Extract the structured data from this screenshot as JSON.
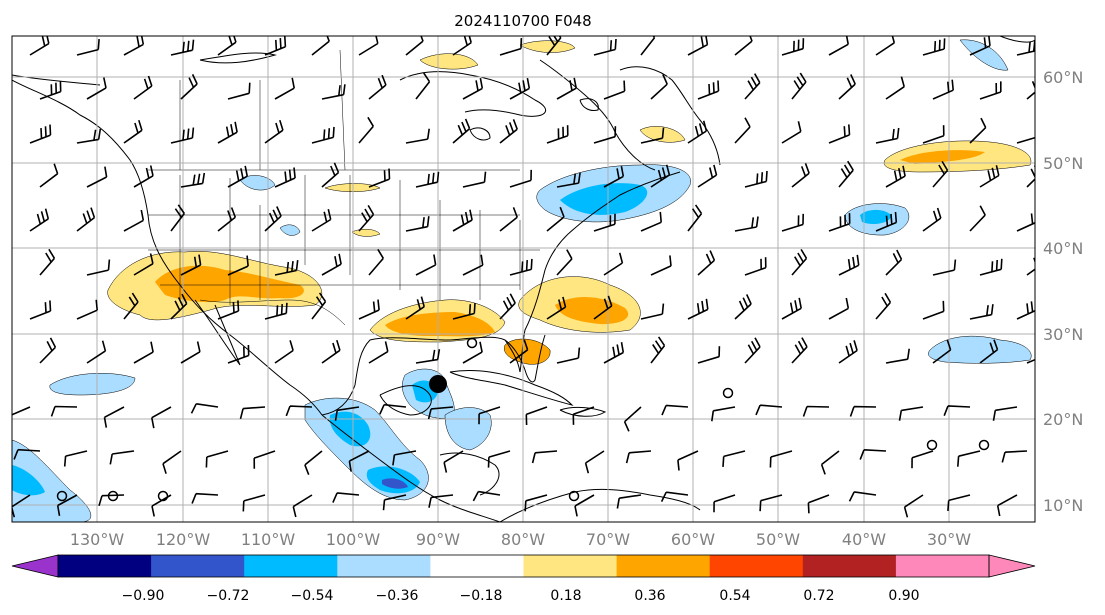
{
  "title": "2024110700 F048",
  "lon_labels": [
    "130°W",
    "120°W",
    "110°W",
    "100°W",
    "90°W",
    "80°W",
    "70°W",
    "60°W",
    "50°W",
    "40°W",
    "30°W"
  ],
  "lat_labels": [
    "60°N",
    "50°N",
    "40°N",
    "30°N",
    "20°N",
    "10°N"
  ],
  "colorbar": {
    "tick_labels": [
      "−0.90",
      "−0.72",
      "−0.54",
      "−0.36",
      "−0.18",
      "0.18",
      "0.36",
      "0.54",
      "0.72",
      "0.90"
    ],
    "colors": [
      "#9933cc",
      "#000080",
      "#3355cc",
      "#00bbff",
      "#aaddff",
      "#ffffff",
      "#ffe680",
      "#ffa500",
      "#ff4500",
      "#b22222",
      "#ff88bb"
    ]
  },
  "colors": {
    "land_border": "#000000",
    "grid": "#b0b0b0",
    "label_gray": "#808080",
    "pos_light": "#ffe680",
    "pos_mid": "#ffa500",
    "neg_light": "#aaddff",
    "neg_mid": "#00bbff",
    "neg_dark": "#3355cc"
  },
  "storm_marker": {
    "lon": -87.5,
    "lat": 24.3
  }
}
